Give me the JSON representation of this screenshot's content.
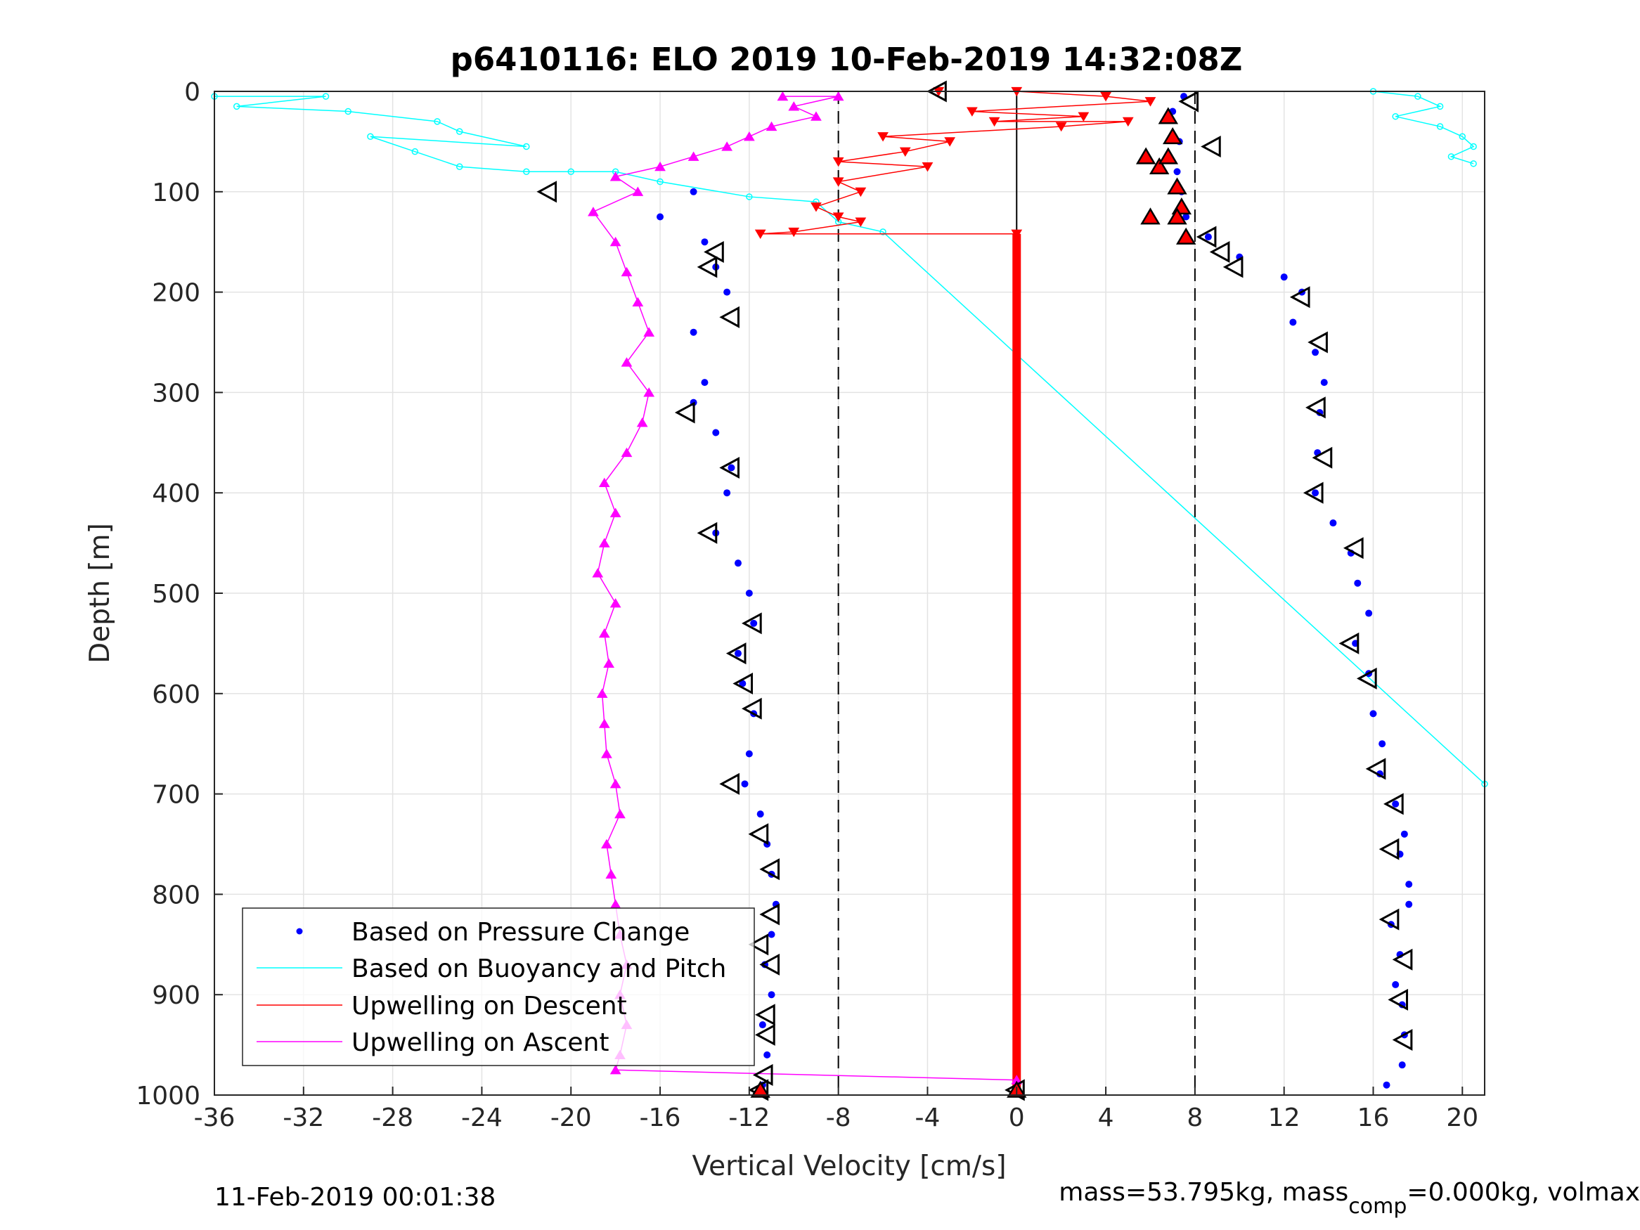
{
  "chart_data": {
    "type": "scatter",
    "title": "p6410116: ELO 2019 10-Feb-2019 14:32:08Z",
    "xlabel": "Vertical Velocity [cm/s]",
    "ylabel": "Depth [m]",
    "xlim": [
      -36,
      21
    ],
    "ylim": [
      1000,
      0
    ],
    "y_reversed": true,
    "grid": true,
    "xticks": [
      -36,
      -32,
      -28,
      -24,
      -20,
      -16,
      -12,
      -8,
      -4,
      0,
      4,
      8,
      12,
      16,
      20
    ],
    "yticks": [
      0,
      100,
      200,
      300,
      400,
      500,
      600,
      700,
      800,
      900,
      1000
    ],
    "xtick_labels": [
      "-36",
      "-32",
      "-28",
      "-24",
      "-20",
      "-16",
      "-12",
      "-8",
      "-4",
      "0",
      "4",
      "8",
      "12",
      "16",
      "20"
    ],
    "ytick_labels": [
      "0",
      "100",
      "200",
      "300",
      "400",
      "500",
      "600",
      "700",
      "800",
      "900",
      "1000"
    ],
    "reference_lines": {
      "dashed_x": [
        -8,
        8
      ],
      "solid_x": [
        0
      ]
    },
    "legend": {
      "placement": "lower-left",
      "entries": [
        "Based on Pressure Change",
        "Based on Buoyancy and Pitch",
        "Upwelling on Descent",
        "Upwelling on Ascent"
      ]
    },
    "series": [
      {
        "name": "Based on Pressure Change",
        "color": "#0000ff",
        "style": "dots",
        "descent_points": [
          [
            -14.5,
            100
          ],
          [
            -16,
            125
          ],
          [
            -14,
            150
          ],
          [
            -13.5,
            175
          ],
          [
            -13,
            200
          ],
          [
            -14.5,
            240
          ],
          [
            -14,
            290
          ],
          [
            -14.5,
            310
          ],
          [
            -13.5,
            340
          ],
          [
            -12.8,
            375
          ],
          [
            -13,
            400
          ],
          [
            -13.5,
            440
          ],
          [
            -12.5,
            470
          ],
          [
            -12,
            500
          ],
          [
            -11.8,
            530
          ],
          [
            -12.5,
            560
          ],
          [
            -12.3,
            590
          ],
          [
            -11.8,
            620
          ],
          [
            -12,
            660
          ],
          [
            -12.2,
            690
          ],
          [
            -11.5,
            720
          ],
          [
            -11.2,
            750
          ],
          [
            -11,
            780
          ],
          [
            -10.8,
            810
          ],
          [
            -11,
            840
          ],
          [
            -11.3,
            870
          ],
          [
            -11,
            900
          ],
          [
            -11.4,
            930
          ],
          [
            -11.2,
            960
          ],
          [
            -11.4,
            990
          ]
        ],
        "ascent_points": [
          [
            7.5,
            5
          ],
          [
            7,
            20
          ],
          [
            7.3,
            50
          ],
          [
            7.2,
            80
          ],
          [
            7.4,
            100
          ],
          [
            7.6,
            125
          ],
          [
            8.6,
            145
          ],
          [
            10,
            165
          ],
          [
            12,
            185
          ],
          [
            12.8,
            200
          ],
          [
            12.4,
            230
          ],
          [
            13.4,
            260
          ],
          [
            13.8,
            290
          ],
          [
            13.6,
            320
          ],
          [
            13.5,
            360
          ],
          [
            13.4,
            400
          ],
          [
            14.2,
            430
          ],
          [
            15,
            460
          ],
          [
            15.3,
            490
          ],
          [
            15.8,
            520
          ],
          [
            15.2,
            550
          ],
          [
            15.8,
            580
          ],
          [
            16,
            620
          ],
          [
            16.4,
            650
          ],
          [
            16.3,
            680
          ],
          [
            17,
            710
          ],
          [
            17.4,
            740
          ],
          [
            17.2,
            760
          ],
          [
            17.6,
            790
          ],
          [
            17.6,
            810
          ],
          [
            16.8,
            830
          ],
          [
            17.2,
            860
          ],
          [
            17,
            890
          ],
          [
            17.3,
            910
          ],
          [
            17.4,
            940
          ],
          [
            17.3,
            970
          ],
          [
            16.6,
            990
          ]
        ]
      },
      {
        "name": "Based on Buoyancy and Pitch",
        "color": "#00ffff",
        "style": "line",
        "points": [
          [
            -36,
            5
          ],
          [
            -31,
            5
          ],
          [
            -35,
            15
          ],
          [
            -30,
            20
          ],
          [
            -26,
            30
          ],
          [
            -25,
            40
          ],
          [
            -22,
            55
          ],
          [
            -29,
            45
          ],
          [
            -27,
            60
          ],
          [
            -25,
            75
          ],
          [
            -22,
            80
          ],
          [
            -20,
            80
          ],
          [
            -18,
            80
          ],
          [
            -16,
            90
          ],
          [
            -12,
            105
          ],
          [
            -9,
            110
          ],
          [
            -8,
            130
          ],
          [
            -6,
            140
          ],
          [
            21,
            690
          ]
        ],
        "surface_points": [
          [
            16,
            0
          ],
          [
            18,
            5
          ],
          [
            19,
            15
          ],
          [
            17,
            25
          ],
          [
            19,
            35
          ],
          [
            20,
            45
          ],
          [
            20.5,
            55
          ],
          [
            19.5,
            65
          ],
          [
            20.5,
            72
          ]
        ]
      },
      {
        "name": "Upwelling on Descent",
        "color": "#ff0000",
        "style": "line-triangle-down",
        "points": [
          [
            -3.5,
            0
          ],
          [
            0,
            0
          ],
          [
            4,
            5
          ],
          [
            6,
            10
          ],
          [
            -2,
            20
          ],
          [
            3,
            25
          ],
          [
            -1,
            30
          ],
          [
            5,
            30
          ],
          [
            2,
            35
          ],
          [
            -6,
            45
          ],
          [
            -3,
            50
          ],
          [
            -5,
            60
          ],
          [
            -8,
            70
          ],
          [
            -4,
            75
          ],
          [
            -8,
            90
          ],
          [
            -7,
            100
          ],
          [
            -9,
            115
          ],
          [
            -8,
            125
          ],
          [
            -7,
            130
          ],
          [
            -10,
            140
          ],
          [
            -11.5,
            142
          ],
          [
            0,
            142
          ]
        ],
        "constant_upwelling": {
          "velocity": 0,
          "from_depth": 142,
          "to_depth": 995
        }
      },
      {
        "name": "Upwelling on Ascent",
        "color": "#ff00ff",
        "style": "line-triangle-up",
        "points": [
          [
            -10.5,
            5
          ],
          [
            -8,
            5
          ],
          [
            -10,
            15
          ],
          [
            -9,
            25
          ],
          [
            -11,
            35
          ],
          [
            -12,
            45
          ],
          [
            -13,
            55
          ],
          [
            -14.5,
            65
          ],
          [
            -16,
            75
          ],
          [
            -18,
            85
          ],
          [
            -17,
            100
          ],
          [
            -19,
            120
          ],
          [
            -18,
            150
          ],
          [
            -17.5,
            180
          ],
          [
            -17,
            210
          ],
          [
            -16.5,
            240
          ],
          [
            -17.5,
            270
          ],
          [
            -16.5,
            300
          ],
          [
            -16.8,
            330
          ],
          [
            -17.5,
            360
          ],
          [
            -18.5,
            390
          ],
          [
            -18,
            420
          ],
          [
            -18.5,
            450
          ],
          [
            -18.8,
            480
          ],
          [
            -18,
            510
          ],
          [
            -18.5,
            540
          ],
          [
            -18.3,
            570
          ],
          [
            -18.6,
            600
          ],
          [
            -18.5,
            630
          ],
          [
            -18.4,
            660
          ],
          [
            -18,
            690
          ],
          [
            -17.8,
            720
          ],
          [
            -18.4,
            750
          ],
          [
            -18.2,
            780
          ],
          [
            -18,
            810
          ],
          [
            -17.8,
            840
          ],
          [
            -17.5,
            870
          ],
          [
            -17.8,
            900
          ],
          [
            -17.5,
            930
          ],
          [
            -17.8,
            960
          ],
          [
            -18,
            975
          ],
          [
            0,
            985
          ]
        ]
      }
    ],
    "triangle_markers": {
      "black_outline": [
        [
          -3.5,
          0
        ],
        [
          -21,
          100
        ],
        [
          -13.5,
          160
        ],
        [
          -13.8,
          175
        ],
        [
          -12.8,
          225
        ],
        [
          -14.8,
          320
        ],
        [
          -12.8,
          375
        ],
        [
          -13.8,
          440
        ],
        [
          -11.8,
          530
        ],
        [
          -12.5,
          560
        ],
        [
          -12.2,
          590
        ],
        [
          -11.8,
          615
        ],
        [
          -12.8,
          690
        ],
        [
          -11.5,
          740
        ],
        [
          -11,
          775
        ],
        [
          -11,
          820
        ],
        [
          -11.5,
          850
        ],
        [
          -11,
          870
        ],
        [
          -11.2,
          920
        ],
        [
          -11.2,
          940
        ],
        [
          -11.3,
          980
        ],
        [
          -11.5,
          995
        ],
        [
          7.8,
          10
        ],
        [
          8.8,
          55
        ],
        [
          8.6,
          145
        ],
        [
          9.2,
          160
        ],
        [
          9.8,
          175
        ],
        [
          12.8,
          205
        ],
        [
          13.6,
          250
        ],
        [
          13.5,
          315
        ],
        [
          13.8,
          365
        ],
        [
          13.4,
          400
        ],
        [
          15.2,
          455
        ],
        [
          15,
          550
        ],
        [
          15.8,
          585
        ],
        [
          16.2,
          675
        ],
        [
          17,
          710
        ],
        [
          16.8,
          755
        ],
        [
          16.8,
          825
        ],
        [
          17.4,
          865
        ],
        [
          17.2,
          905
        ],
        [
          17.4,
          945
        ],
        [
          0,
          995
        ]
      ],
      "red_filled": [
        [
          6.8,
          25
        ],
        [
          7,
          45
        ],
        [
          5.8,
          65
        ],
        [
          6.4,
          75
        ],
        [
          6.8,
          65
        ],
        [
          7.2,
          95
        ],
        [
          7.4,
          115
        ],
        [
          7.2,
          125
        ],
        [
          6,
          125
        ],
        [
          7.6,
          145
        ],
        [
          -11.5,
          995
        ],
        [
          0,
          995
        ]
      ]
    }
  },
  "footer": {
    "timestamp": "11-Feb-2019 00:01:38",
    "mass_prefix": "mass=53.795kg, mass",
    "mass_subscript": "comp",
    "mass_suffix": "=0.000kg, volmax"
  }
}
